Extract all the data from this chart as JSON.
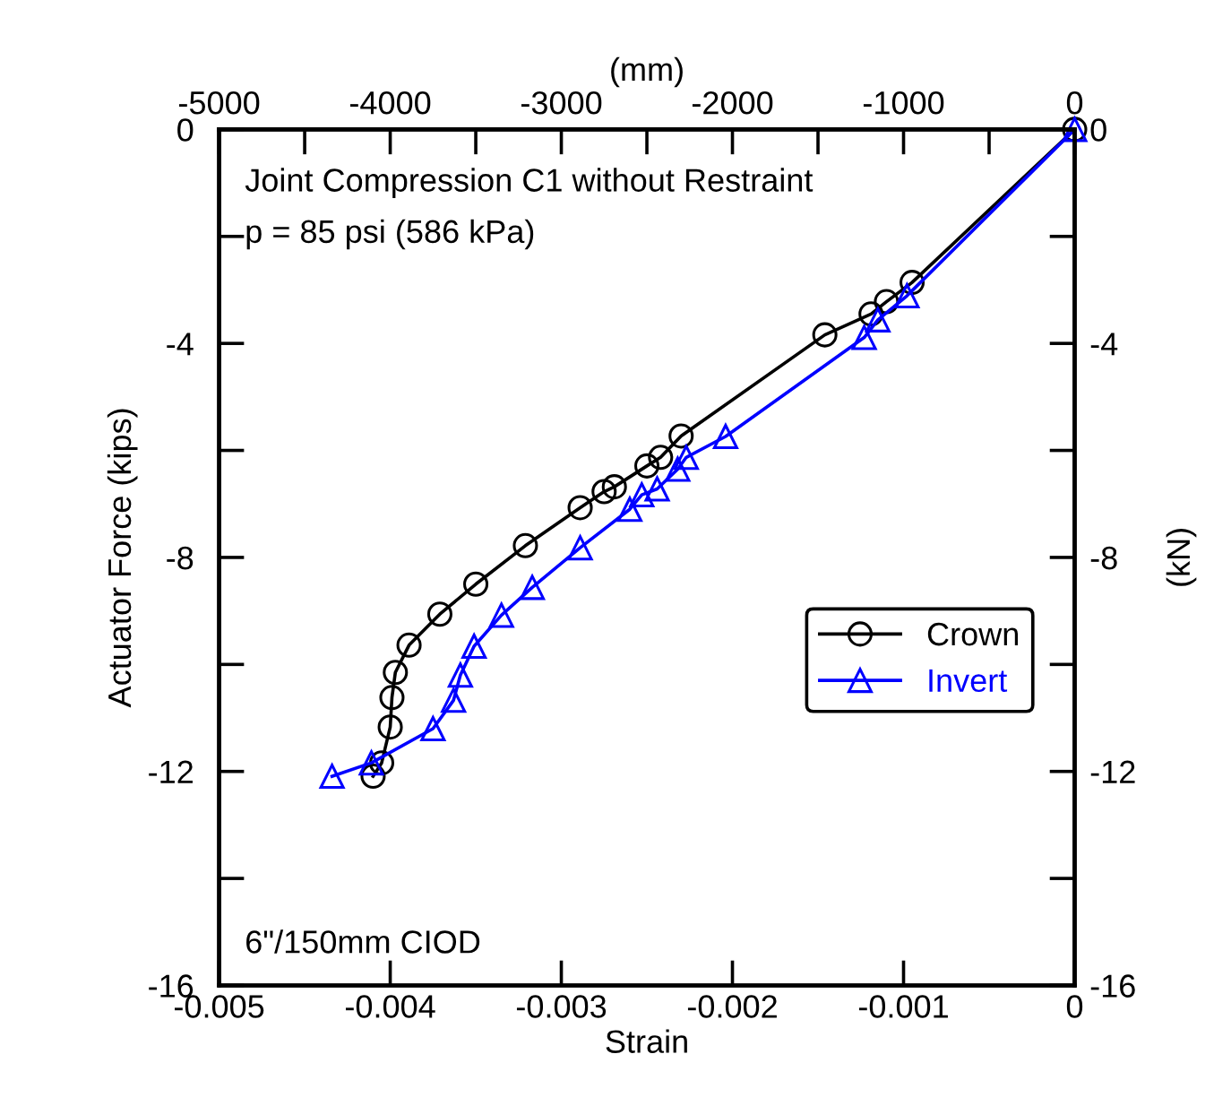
{
  "chart_data": {
    "type": "line",
    "xlabel": "Strain",
    "x2label": "(mm)",
    "ylabel": "Actuator Force (kips)",
    "y2label": "(kN)",
    "annotations": [
      "Joint Compression C1 without Restraint",
      "p = 85 psi (586 kPa)",
      "6\"/150mm CIOD"
    ],
    "xlim": [
      -0.005,
      0
    ],
    "xticks": [
      -0.005,
      -0.004,
      -0.003,
      -0.002,
      -0.001,
      0
    ],
    "x2lim": [
      -5000,
      0
    ],
    "x2ticks": [
      -5000,
      {
        "value": -4500,
        "label": null
      },
      -4000,
      {
        "value": -3500,
        "label": null
      },
      -3000,
      {
        "value": -2500,
        "label": null
      },
      -2000,
      {
        "value": -1500,
        "label": null
      },
      -1000,
      {
        "value": -500,
        "label": null
      },
      0
    ],
    "ylim": [
      -16,
      0
    ],
    "yticks": [
      -16,
      {
        "value": -14,
        "label": null
      },
      -12,
      {
        "value": -10,
        "label": null
      },
      -8,
      {
        "value": -6,
        "label": null
      },
      -4,
      {
        "value": -2,
        "label": null
      },
      0
    ],
    "y2lim": [
      -16,
      0
    ],
    "y2ticks": [
      -16,
      {
        "value": -14,
        "label": null
      },
      -12,
      {
        "value": -10,
        "label": null
      },
      -8,
      {
        "value": -6,
        "label": null
      },
      -4,
      {
        "value": -2,
        "label": null
      },
      0
    ],
    "grid": false,
    "legend": "right",
    "line_style": "solid",
    "series": [
      {
        "name": "Crown",
        "color": "#000000",
        "marker": "circle",
        "x": [
          0,
          -0.00095,
          -0.0011,
          -0.00119,
          -0.00146,
          -0.0023,
          -0.00242,
          -0.0025,
          -0.00269,
          -0.00275,
          -0.00289,
          -0.00321,
          -0.0035,
          -0.00371,
          -0.00389,
          -0.00397,
          -0.00399,
          -0.004,
          -0.00405,
          -0.0041
        ],
        "values": [
          0,
          -2.86,
          -3.22,
          -3.45,
          -3.84,
          -5.73,
          -6.13,
          -6.29,
          -6.68,
          -6.77,
          -7.07,
          -7.78,
          -8.5,
          -9.06,
          -9.64,
          -10.15,
          -10.62,
          -11.17,
          -11.84,
          -12.09
        ]
      },
      {
        "name": "Invert",
        "color": "#0000ff",
        "marker": "triangle",
        "x": [
          0,
          -0.00098,
          -0.00115,
          -0.00123,
          -0.00204,
          -0.00227,
          -0.00232,
          -0.00244,
          -0.00253,
          -0.0026,
          -0.00289,
          -0.00317,
          -0.00335,
          -0.00351,
          -0.00359,
          -0.00363,
          -0.00375,
          -0.00411,
          -0.00434
        ],
        "values": [
          0,
          -3.11,
          -3.56,
          -3.89,
          -5.74,
          -6.13,
          -6.35,
          -6.72,
          -6.83,
          -7.1,
          -7.82,
          -8.56,
          -9.08,
          -9.66,
          -10.2,
          -10.67,
          -11.2,
          -11.84,
          -12.09
        ]
      }
    ]
  }
}
